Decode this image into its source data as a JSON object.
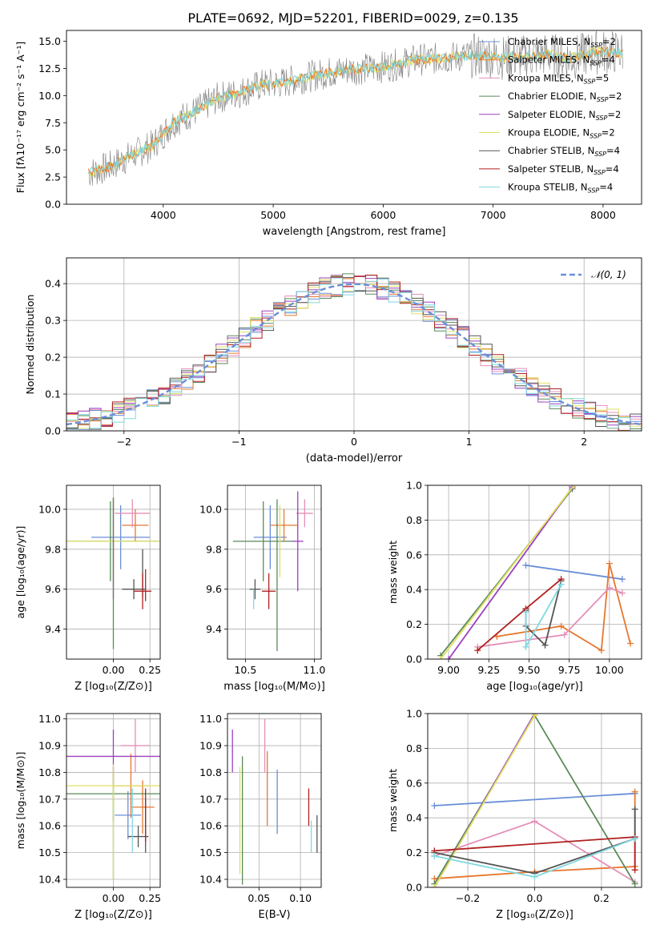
{
  "colors": {
    "Chabrier MILES": "#6a8fd8",
    "Salpeter MILES": "#e6772e",
    "Kroupa MILES": "#e58fb8",
    "Chabrier ELODIE": "#5a8a5a",
    "Salpeter ELODIE": "#9b40c0",
    "Kroupa ELODIE": "#e0e060",
    "Chabrier STELIB": "#555555",
    "Salpeter STELIB": "#b02020",
    "Kroupa STELIB": "#80d8e0",
    "spectrum": "#808080",
    "grid": "#b0b0b0",
    "gauss": "#6a8fd8"
  },
  "chart_data": [
    {
      "id": "spectrum",
      "type": "line",
      "title": "PLATE=0692, MJD=52201, FIBERID=0029, z=0.135",
      "xlabel": "wavelength [Angstrom, rest frame]",
      "ylabel": "Flux [fλ10⁻¹⁷ erg cm⁻² s⁻¹ A⁻¹]",
      "xlim": [
        3120,
        8350
      ],
      "ylim": [
        0,
        16
      ],
      "xticks": [
        "4000",
        "5000",
        "6000",
        "7000",
        "8000"
      ],
      "yticks": [
        "0.0",
        "2.5",
        "5.0",
        "7.5",
        "10.0",
        "12.5",
        "15.0"
      ],
      "grid": false,
      "legend_position": "top-right",
      "legend": [
        {
          "label": "Chabrier MILES, N",
          "sub": "SSP",
          "tail": "=2",
          "model": "Chabrier MILES"
        },
        {
          "label": "Salpeter MILES, N",
          "sub": "SSP",
          "tail": "=4",
          "model": "Salpeter MILES"
        },
        {
          "label": "Kroupa MILES, N",
          "sub": "SSP",
          "tail": "=5",
          "model": "Kroupa MILES"
        },
        {
          "label": "Chabrier ELODIE, N",
          "sub": "SSP",
          "tail": "=2",
          "model": "Chabrier ELODIE"
        },
        {
          "label": "Salpeter ELODIE, N",
          "sub": "SSP",
          "tail": "=2",
          "model": "Salpeter ELODIE"
        },
        {
          "label": "Kroupa ELODIE, N",
          "sub": "SSP",
          "tail": "=2",
          "model": "Kroupa ELODIE"
        },
        {
          "label": "Chabrier STELIB, N",
          "sub": "SSP",
          "tail": "=4",
          "model": "Chabrier STELIB"
        },
        {
          "label": "Salpeter STELIB, N",
          "sub": "SSP",
          "tail": "=4",
          "model": "Salpeter STELIB"
        },
        {
          "label": "Kroupa STELIB, N",
          "sub": "SSP",
          "tail": "=4",
          "model": "Kroupa STELIB"
        }
      ],
      "model_curve": {
        "x": [
          3300,
          3500,
          3700,
          3900,
          4100,
          4300,
          4500,
          4700,
          4900,
          5100,
          5300,
          5500,
          5700,
          5900,
          6100,
          6300,
          6500,
          6700,
          6900,
          7100,
          7300,
          7500,
          7700,
          7900
        ],
        "y": [
          2.8,
          3.4,
          4.4,
          5.4,
          7.6,
          8.6,
          9.8,
          10.3,
          11.0,
          11.2,
          11.7,
          12.1,
          12.4,
          12.5,
          12.8,
          13.3,
          13.4,
          13.6,
          13.7,
          13.5,
          13.6,
          13.8,
          13.4,
          14.0
        ]
      }
    },
    {
      "id": "residuals",
      "type": "line",
      "xlabel": "(data-model)/error",
      "ylabel": "Normed distribution",
      "xlim": [
        -2.5,
        2.5
      ],
      "ylim": [
        0,
        0.47
      ],
      "xticks": [
        "−2",
        "−1",
        "0",
        "1",
        "2"
      ],
      "yticks": [
        "0.0",
        "0.1",
        "0.2",
        "0.3",
        "0.4"
      ],
      "grid": true,
      "legend_position": "top-right",
      "legend": [
        {
          "label": "𝒩(0, 1)"
        }
      ],
      "gaussian": {
        "mean": 0,
        "sigma": 1
      }
    },
    {
      "id": "Z-age",
      "type": "scatter",
      "xlabel": "Z [log₁₀(Z/Z⊙)]",
      "ylabel": "age  [log₁₀(age/yr)]",
      "xlim": [
        -0.32,
        0.32
      ],
      "ylim": [
        9.25,
        10.12
      ],
      "xticks": [
        "0.00",
        "0.25"
      ],
      "yticks": [
        "9.4",
        "9.6",
        "9.8",
        "10.0"
      ],
      "grid": true,
      "points": [
        {
          "x": 0.05,
          "y": 9.86,
          "xerr": 0.2,
          "yerr": 0.16,
          "model": "Chabrier MILES"
        },
        {
          "x": 0.15,
          "y": 9.92,
          "xerr": 0.09,
          "yerr": 0.08,
          "model": "Salpeter MILES"
        },
        {
          "x": 0.13,
          "y": 9.98,
          "xerr": 0.12,
          "yerr": 0.07,
          "model": "Kroupa MILES"
        },
        {
          "x": -0.02,
          "y": 9.84,
          "xerr": 0.33,
          "yerr": 0.2,
          "model": "Chabrier ELODIE"
        },
        {
          "x": 0.0,
          "y": 9.84,
          "xerr": 0.33,
          "yerr": 0.22,
          "model": "Kroupa ELODIE"
        },
        {
          "x": 0.0,
          "y": 9.8,
          "xerr": 0.0,
          "yerr": 0.25,
          "model": "Salpeter ELODIE"
        },
        {
          "x": 0.0,
          "y": 9.68,
          "xerr": 0.0,
          "yerr": 0.38,
          "model": "Chabrier ELODIE"
        },
        {
          "x": 0.14,
          "y": 9.6,
          "xerr": 0.08,
          "yerr": 0.05,
          "model": "Chabrier STELIB"
        },
        {
          "x": 0.2,
          "y": 9.68,
          "xerr": 0.0,
          "yerr": 0.12,
          "model": "Chabrier STELIB"
        },
        {
          "x": 0.2,
          "y": 9.59,
          "xerr": 0.06,
          "yerr": 0.09,
          "model": "Salpeter STELIB"
        },
        {
          "x": 0.22,
          "y": 9.62,
          "xerr": 0.0,
          "yerr": 0.08,
          "model": "Salpeter STELIB"
        }
      ]
    },
    {
      "id": "mass-age",
      "type": "scatter",
      "xlabel": "mass [log₁₀(M/M⊙)]",
      "ylabel": "",
      "xlim": [
        10.37,
        11.05
      ],
      "ylim": [
        9.25,
        10.12
      ],
      "xticks": [
        "10.5",
        "11.0"
      ],
      "yticks": [
        "9.4",
        "9.6",
        "9.8",
        "10.0"
      ],
      "grid": true,
      "points": [
        {
          "x": 10.68,
          "y": 9.86,
          "xerr": 0.12,
          "yerr": 0.16,
          "model": "Chabrier MILES"
        },
        {
          "x": 10.78,
          "y": 9.92,
          "xerr": 0.1,
          "yerr": 0.08,
          "model": "Salpeter MILES"
        },
        {
          "x": 10.93,
          "y": 9.98,
          "xerr": 0.06,
          "yerr": 0.07,
          "model": "Kroupa MILES"
        },
        {
          "x": 10.63,
          "y": 9.84,
          "xerr": 0.22,
          "yerr": 0.2,
          "model": "Chabrier ELODIE"
        },
        {
          "x": 10.75,
          "y": 9.84,
          "xerr": 0.0,
          "yerr": 0.18,
          "model": "Kroupa ELODIE"
        },
        {
          "x": 10.88,
          "y": 9.84,
          "xerr": 0.04,
          "yerr": 0.25,
          "model": "Salpeter ELODIE"
        },
        {
          "x": 10.73,
          "y": 9.67,
          "xerr": 0.0,
          "yerr": 0.38,
          "model": "Chabrier ELODIE"
        },
        {
          "x": 10.57,
          "y": 9.6,
          "xerr": 0.04,
          "yerr": 0.05,
          "model": "Chabrier STELIB"
        },
        {
          "x": 10.67,
          "y": 9.59,
          "xerr": 0.05,
          "yerr": 0.09,
          "model": "Salpeter STELIB"
        },
        {
          "x": 10.56,
          "y": 9.55,
          "xerr": 0.0,
          "yerr": 0.05,
          "model": "Kroupa STELIB"
        }
      ]
    },
    {
      "id": "age-weight",
      "type": "line",
      "xlabel": "age  [log₁₀(age/yr)]",
      "ylabel": "mass weight",
      "xlim": [
        8.87,
        10.2
      ],
      "ylim": [
        0,
        1
      ],
      "xticks": [
        "9.00",
        "9.25",
        "9.50",
        "9.75",
        "10.00"
      ],
      "yticks": [
        "0.0",
        "0.2",
        "0.4",
        "0.6",
        "0.8",
        "1.0"
      ],
      "grid": true,
      "series": [
        {
          "model": "Chabrier MILES",
          "x": [
            9.48,
            10.08
          ],
          "y": [
            0.54,
            0.46
          ]
        },
        {
          "model": "Salpeter MILES",
          "x": [
            9.3,
            9.7,
            9.95,
            10.0,
            10.13
          ],
          "y": [
            0.13,
            0.19,
            0.05,
            0.55,
            0.09
          ]
        },
        {
          "model": "Kroupa MILES",
          "x": [
            9.18,
            9.72,
            10.0,
            10.08
          ],
          "y": [
            0.07,
            0.14,
            0.41,
            0.38
          ]
        },
        {
          "model": "Chabrier ELODIE",
          "x": [
            8.95,
            9.77
          ],
          "y": [
            0.02,
            0.98
          ]
        },
        {
          "model": "Salpeter ELODIE",
          "x": [
            9.0,
            9.77
          ],
          "y": [
            0.0,
            0.99
          ]
        },
        {
          "model": "Kroupa ELODIE",
          "x": [
            8.95,
            9.78
          ],
          "y": [
            0.0,
            1.0
          ]
        },
        {
          "model": "Chabrier STELIB",
          "x": [
            9.48,
            9.48,
            9.6,
            9.7
          ],
          "y": [
            0.28,
            0.19,
            0.08,
            0.45
          ]
        },
        {
          "model": "Salpeter STELIB",
          "x": [
            9.18,
            9.48,
            9.7
          ],
          "y": [
            0.05,
            0.29,
            0.46
          ]
        },
        {
          "model": "Kroupa STELIB",
          "x": [
            9.48,
            9.48,
            9.7
          ],
          "y": [
            0.27,
            0.07,
            0.43
          ]
        }
      ]
    },
    {
      "id": "Z-mass",
      "type": "scatter",
      "xlabel": "Z [log₁₀(Z/Z⊙)]",
      "ylabel": "mass [log₁₀(M/M⊙)]",
      "xlim": [
        -0.32,
        0.32
      ],
      "ylim": [
        10.37,
        11.02
      ],
      "xticks": [
        "0.00",
        "0.25"
      ],
      "yticks": [
        "10.4",
        "10.5",
        "10.6",
        "10.7",
        "10.8",
        "10.9",
        "11.0"
      ],
      "grid": true,
      "points": [
        {
          "x": 0.1,
          "y": 10.64,
          "xerr": 0.09,
          "yerr": 0.09,
          "model": "Chabrier MILES"
        },
        {
          "x": 0.12,
          "y": 10.75,
          "xerr": 0.12,
          "yerr": 0.12,
          "model": "Salpeter MILES"
        },
        {
          "x": 0.2,
          "y": 10.67,
          "xerr": 0.08,
          "yerr": 0.1,
          "model": "Salpeter MILES"
        },
        {
          "x": 0.15,
          "y": 10.9,
          "xerr": 0.1,
          "yerr": 0.1,
          "model": "Kroupa MILES"
        },
        {
          "x": 0.0,
          "y": 10.72,
          "xerr": 0.32,
          "yerr": 0.1,
          "model": "Chabrier ELODIE"
        },
        {
          "x": 0.0,
          "y": 10.6,
          "xerr": 0.0,
          "yerr": 0.2,
          "model": "Chabrier ELODIE"
        },
        {
          "x": 0.0,
          "y": 10.86,
          "xerr": 0.32,
          "yerr": 0.1,
          "model": "Salpeter ELODIE"
        },
        {
          "x": 0.0,
          "y": 10.75,
          "xerr": 0.33,
          "yerr": 0.08,
          "model": "Kroupa ELODIE"
        },
        {
          "x": 0.0,
          "y": 10.6,
          "xerr": 0.0,
          "yerr": 0.2,
          "model": "Kroupa ELODIE"
        },
        {
          "x": 0.17,
          "y": 10.56,
          "xerr": 0.07,
          "yerr": 0.04,
          "model": "Chabrier STELIB"
        },
        {
          "x": 0.22,
          "y": 10.6,
          "xerr": 0.0,
          "yerr": 0.1,
          "model": "Chabrier STELIB"
        },
        {
          "x": 0.22,
          "y": 10.64,
          "xerr": 0.0,
          "yerr": 0.1,
          "model": "Salpeter STELIB"
        },
        {
          "x": 0.13,
          "y": 10.62,
          "xerr": 0.0,
          "yerr": 0.12,
          "model": "Kroupa STELIB"
        }
      ]
    },
    {
      "id": "EBV-mass",
      "type": "scatter",
      "xlabel": "E(B-V)",
      "ylabel": "",
      "xlim": [
        0.012,
        0.125
      ],
      "ylim": [
        10.37,
        11.02
      ],
      "xticks": [
        "0.05",
        "0.10"
      ],
      "yticks": [
        "10.4",
        "10.5",
        "10.6",
        "10.7",
        "10.8",
        "10.9",
        "11.0"
      ],
      "grid": true,
      "points": [
        {
          "x": 0.072,
          "y": 10.69,
          "yerr": 0.12,
          "model": "Chabrier MILES"
        },
        {
          "x": 0.06,
          "y": 10.74,
          "yerr": 0.14,
          "model": "Salpeter MILES"
        },
        {
          "x": 0.057,
          "y": 10.9,
          "yerr": 0.1,
          "model": "Kroupa MILES"
        },
        {
          "x": 0.03,
          "y": 10.62,
          "yerr": 0.24,
          "model": "Chabrier ELODIE"
        },
        {
          "x": 0.018,
          "y": 10.88,
          "yerr": 0.08,
          "model": "Salpeter ELODIE"
        },
        {
          "x": 0.027,
          "y": 10.62,
          "yerr": 0.2,
          "model": "Kroupa ELODIE"
        },
        {
          "x": 0.12,
          "y": 10.57,
          "yerr": 0.07,
          "model": "Chabrier STELIB"
        },
        {
          "x": 0.11,
          "y": 10.67,
          "yerr": 0.07,
          "model": "Salpeter STELIB"
        },
        {
          "x": 0.113,
          "y": 10.56,
          "yerr": 0.06,
          "model": "Kroupa STELIB"
        }
      ]
    },
    {
      "id": "Z-weight",
      "type": "line",
      "xlabel": "Z [log₁₀(Z/Z⊙)]",
      "ylabel": "mass weight",
      "xlim": [
        -0.32,
        0.32
      ],
      "ylim": [
        0,
        1
      ],
      "xticks": [
        "−0.2",
        "0.0",
        "0.2"
      ],
      "yticks": [
        "0.0",
        "0.2",
        "0.4",
        "0.6",
        "0.8",
        "1.0"
      ],
      "grid": true,
      "series": [
        {
          "model": "Chabrier MILES",
          "x": [
            -0.3,
            0.3
          ],
          "y": [
            0.47,
            0.54
          ]
        },
        {
          "model": "Salpeter MILES",
          "x": [
            -0.3,
            0.0,
            0.3,
            0.3
          ],
          "y": [
            0.05,
            0.09,
            0.12,
            0.55
          ]
        },
        {
          "model": "Kroupa MILES",
          "x": [
            -0.3,
            0.0,
            0.3
          ],
          "y": [
            0.18,
            0.38,
            0.03
          ]
        },
        {
          "model": "Chabrier ELODIE",
          "x": [
            -0.3,
            0.0,
            0.3
          ],
          "y": [
            0.02,
            0.99,
            0.02
          ]
        },
        {
          "model": "Salpeter ELODIE",
          "x": [
            -0.3,
            0.0
          ],
          "y": [
            0.0,
            1.0
          ]
        },
        {
          "model": "Kroupa ELODIE",
          "x": [
            -0.3,
            0.0
          ],
          "y": [
            0.0,
            0.99
          ]
        },
        {
          "model": "Chabrier STELIB",
          "x": [
            -0.3,
            0.0,
            0.3,
            0.3
          ],
          "y": [
            0.2,
            0.08,
            0.28,
            0.45
          ]
        },
        {
          "model": "Salpeter STELIB",
          "x": [
            -0.3,
            0.3,
            0.3
          ],
          "y": [
            0.21,
            0.29,
            0.1
          ]
        },
        {
          "model": "Kroupa STELIB",
          "x": [
            -0.3,
            0.0,
            0.3
          ],
          "y": [
            0.18,
            0.06,
            0.28
          ]
        }
      ]
    }
  ]
}
